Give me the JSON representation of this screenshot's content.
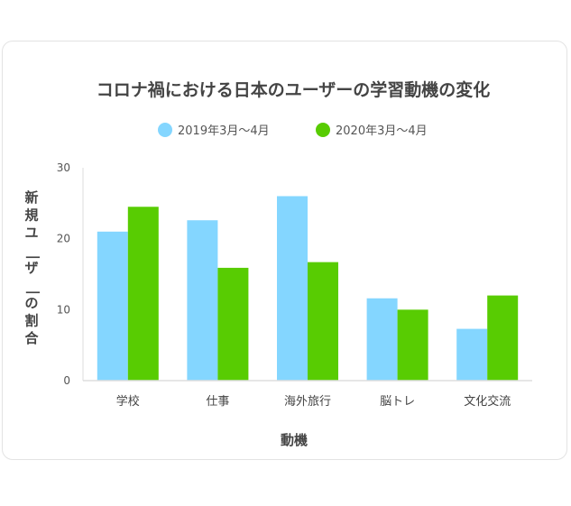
{
  "chart_data": {
    "type": "bar",
    "title": "コロナ禍における日本のユーザーの学習動機の変化",
    "xlabel": "動機",
    "ylabel": "新規ユーザーの割合",
    "categories": [
      "学校",
      "仕事",
      "海外旅行",
      "脳トレ",
      "文化交流"
    ],
    "series": [
      {
        "name": "2019年3月〜4月",
        "color": "#84d6ff",
        "values": [
          21,
          22.6,
          26,
          11.6,
          7.3
        ]
      },
      {
        "name": "2020年3月〜4月",
        "color": "#58cc02",
        "values": [
          24.5,
          15.9,
          16.7,
          10,
          12
        ]
      }
    ],
    "ylim": [
      0,
      30
    ],
    "yticks": [
      0,
      10,
      20,
      30
    ],
    "grid": false,
    "legend": "top-center"
  }
}
